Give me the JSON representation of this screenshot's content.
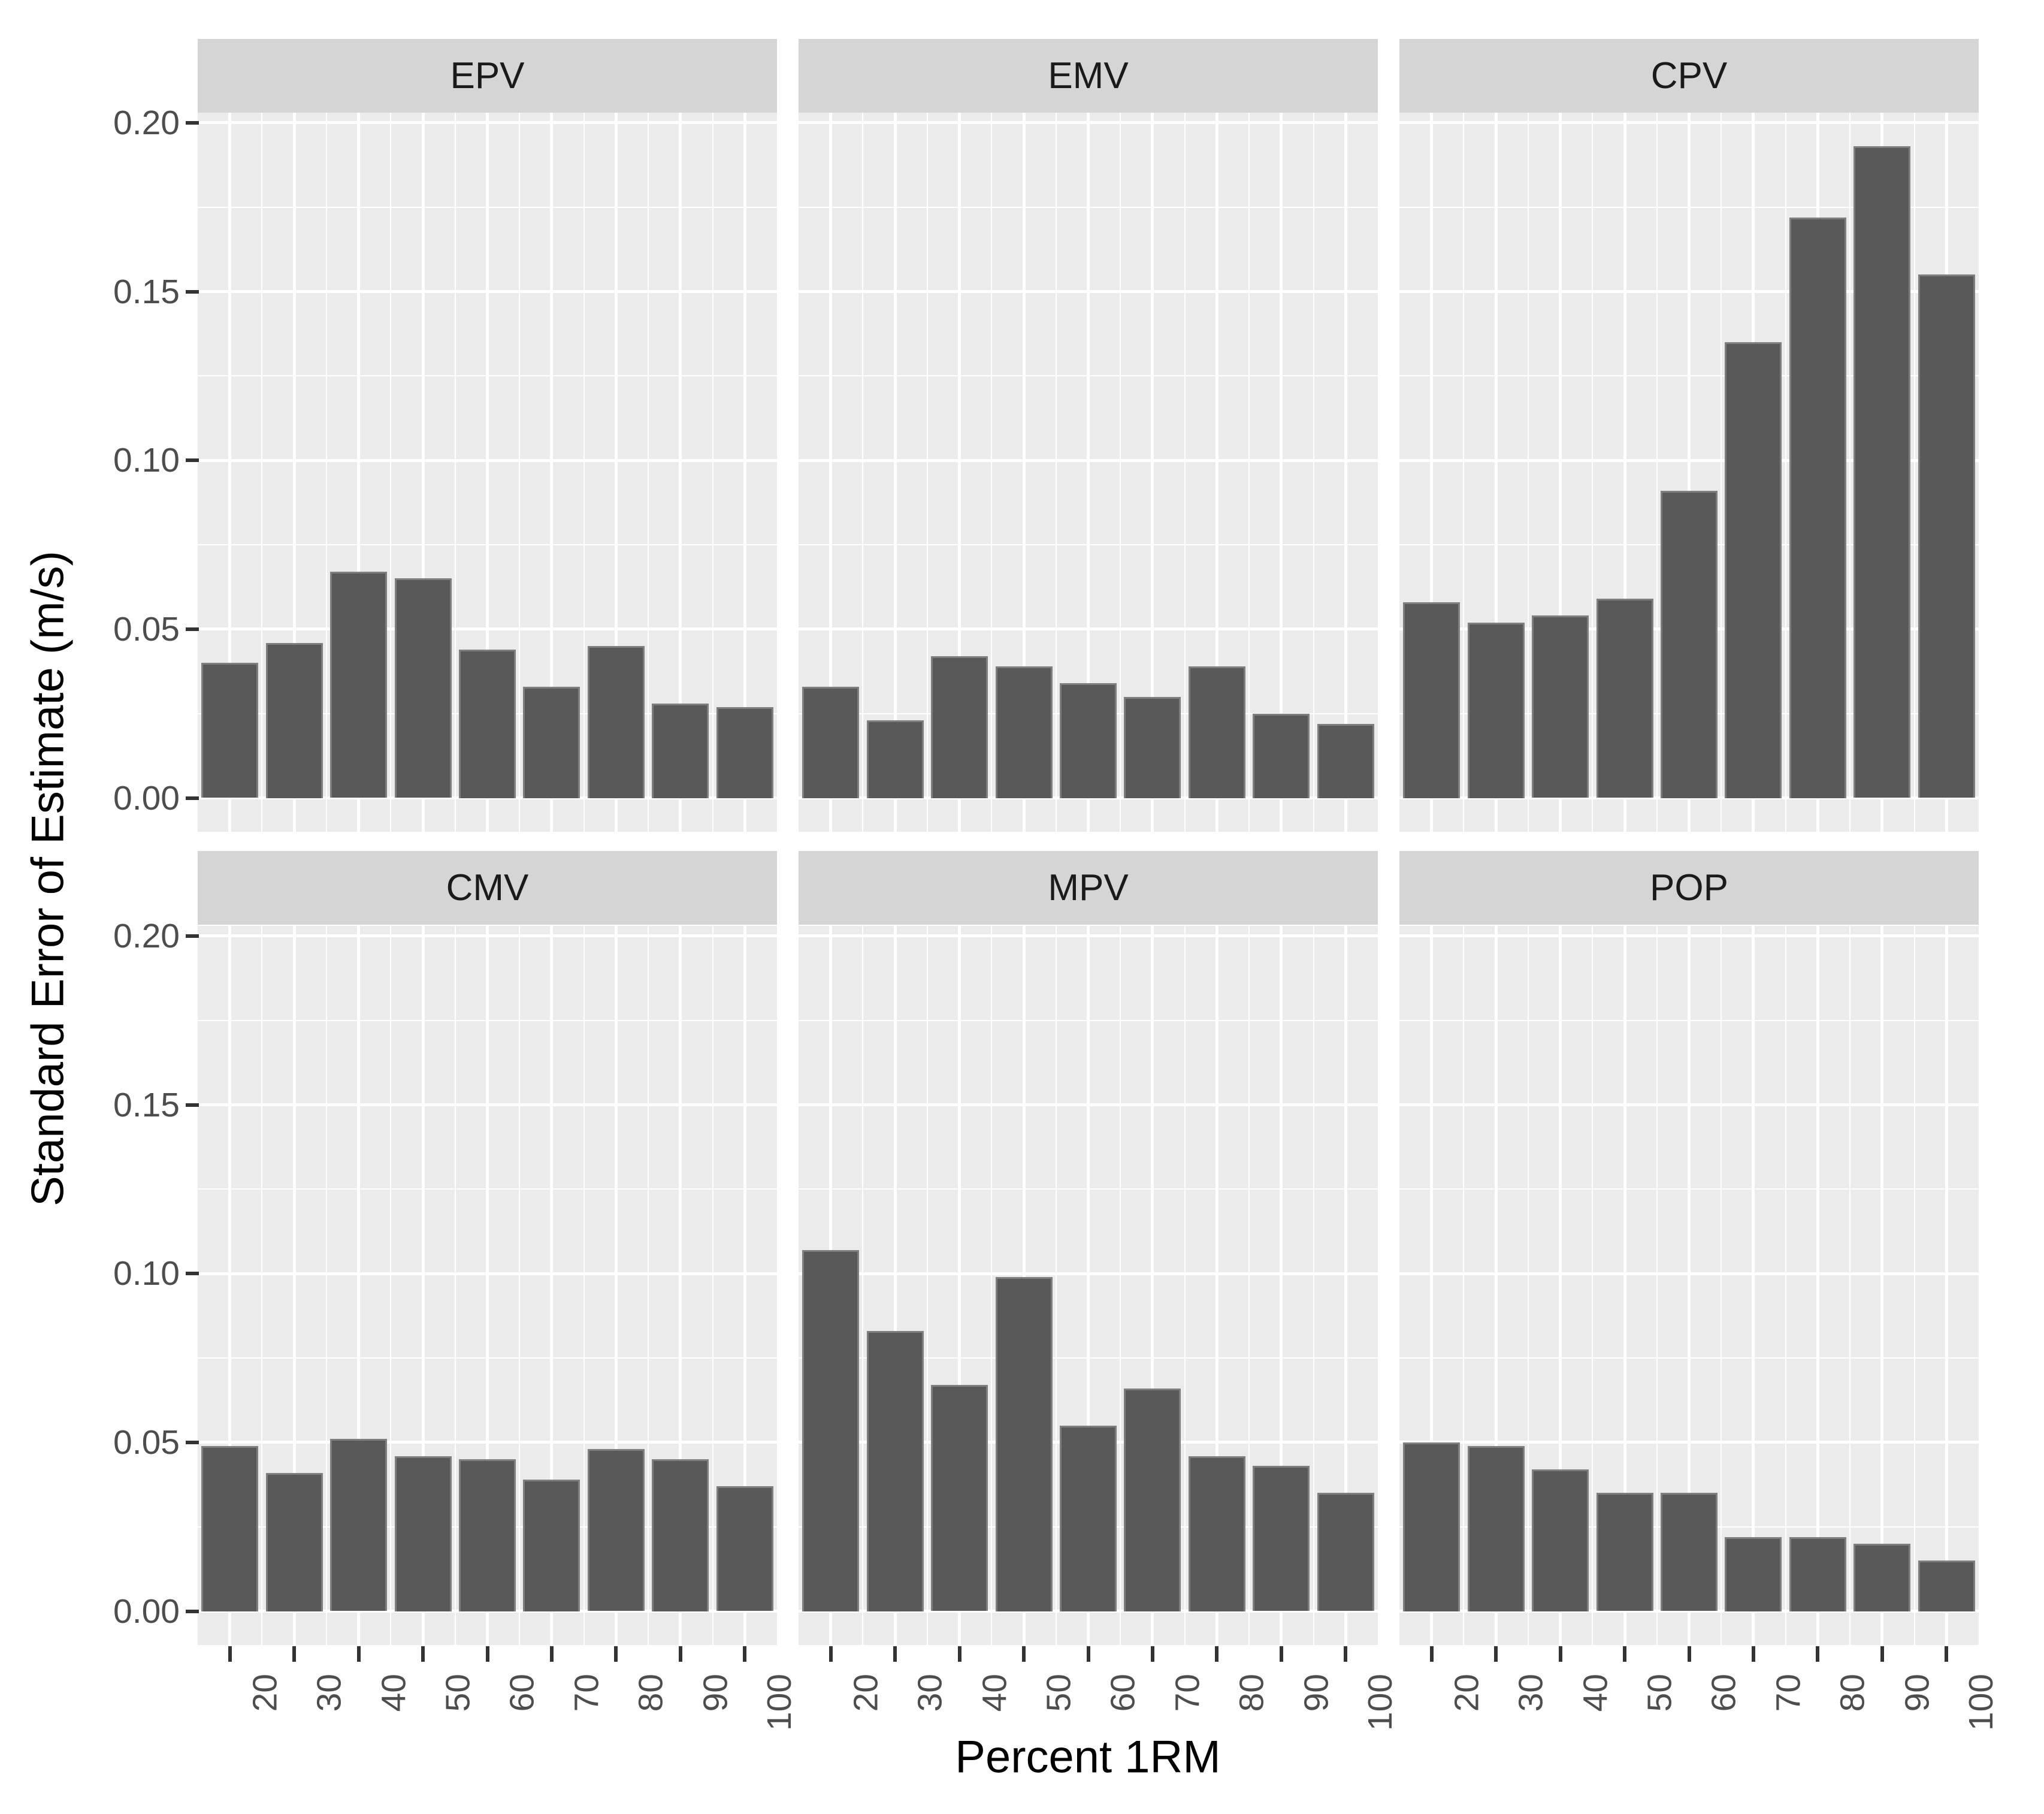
{
  "chart_data": {
    "type": "bar",
    "title": "",
    "xlabel": "Percent 1RM",
    "ylabel": "Standard Error of Estimate (m/s)",
    "categories": [
      "20",
      "30",
      "40",
      "50",
      "60",
      "70",
      "80",
      "90",
      "100"
    ],
    "x": [
      20,
      30,
      40,
      50,
      60,
      70,
      80,
      90,
      100
    ],
    "y_tick_labels": [
      "0.20",
      "0.15",
      "0.10",
      "0.05",
      "0.00"
    ],
    "y_major_breaks": [
      0.0,
      0.05,
      0.1,
      0.15,
      0.2
    ],
    "y_minor_breaks": [
      0.025,
      0.075,
      0.125,
      0.175
    ],
    "ylim": [
      -0.01,
      0.203
    ],
    "grid": "on",
    "legend": "none",
    "facet_layout": {
      "rows": 2,
      "cols": 3
    },
    "facets": [
      {
        "label": "EPV",
        "values": [
          0.04,
          0.046,
          0.067,
          0.065,
          0.044,
          0.033,
          0.045,
          0.028,
          0.027
        ]
      },
      {
        "label": "EMV",
        "values": [
          0.033,
          0.023,
          0.042,
          0.039,
          0.034,
          0.03,
          0.039,
          0.025,
          0.022
        ]
      },
      {
        "label": "CPV",
        "values": [
          0.058,
          0.052,
          0.054,
          0.059,
          0.091,
          0.135,
          0.172,
          0.193,
          0.155
        ]
      },
      {
        "label": "CMV",
        "values": [
          0.049,
          0.041,
          0.051,
          0.046,
          0.045,
          0.039,
          0.048,
          0.045,
          0.037
        ]
      },
      {
        "label": "MPV",
        "values": [
          0.107,
          0.083,
          0.067,
          0.099,
          0.055,
          0.066,
          0.046,
          0.043,
          0.035
        ]
      },
      {
        "label": "POP",
        "values": [
          0.05,
          0.049,
          0.042,
          0.035,
          0.035,
          0.022,
          0.022,
          0.02,
          0.015
        ]
      }
    ],
    "colors": {
      "bar_fill": "#595959",
      "bar_border": "#7e7e7e",
      "panel_bg": "#ebebeb",
      "strip_bg": "#d5d5d5",
      "gridline": "#ffffff",
      "tick_text": "#4d4d4d",
      "axis_title_text": "#000000",
      "strip_text": "#1a1a1a"
    }
  }
}
